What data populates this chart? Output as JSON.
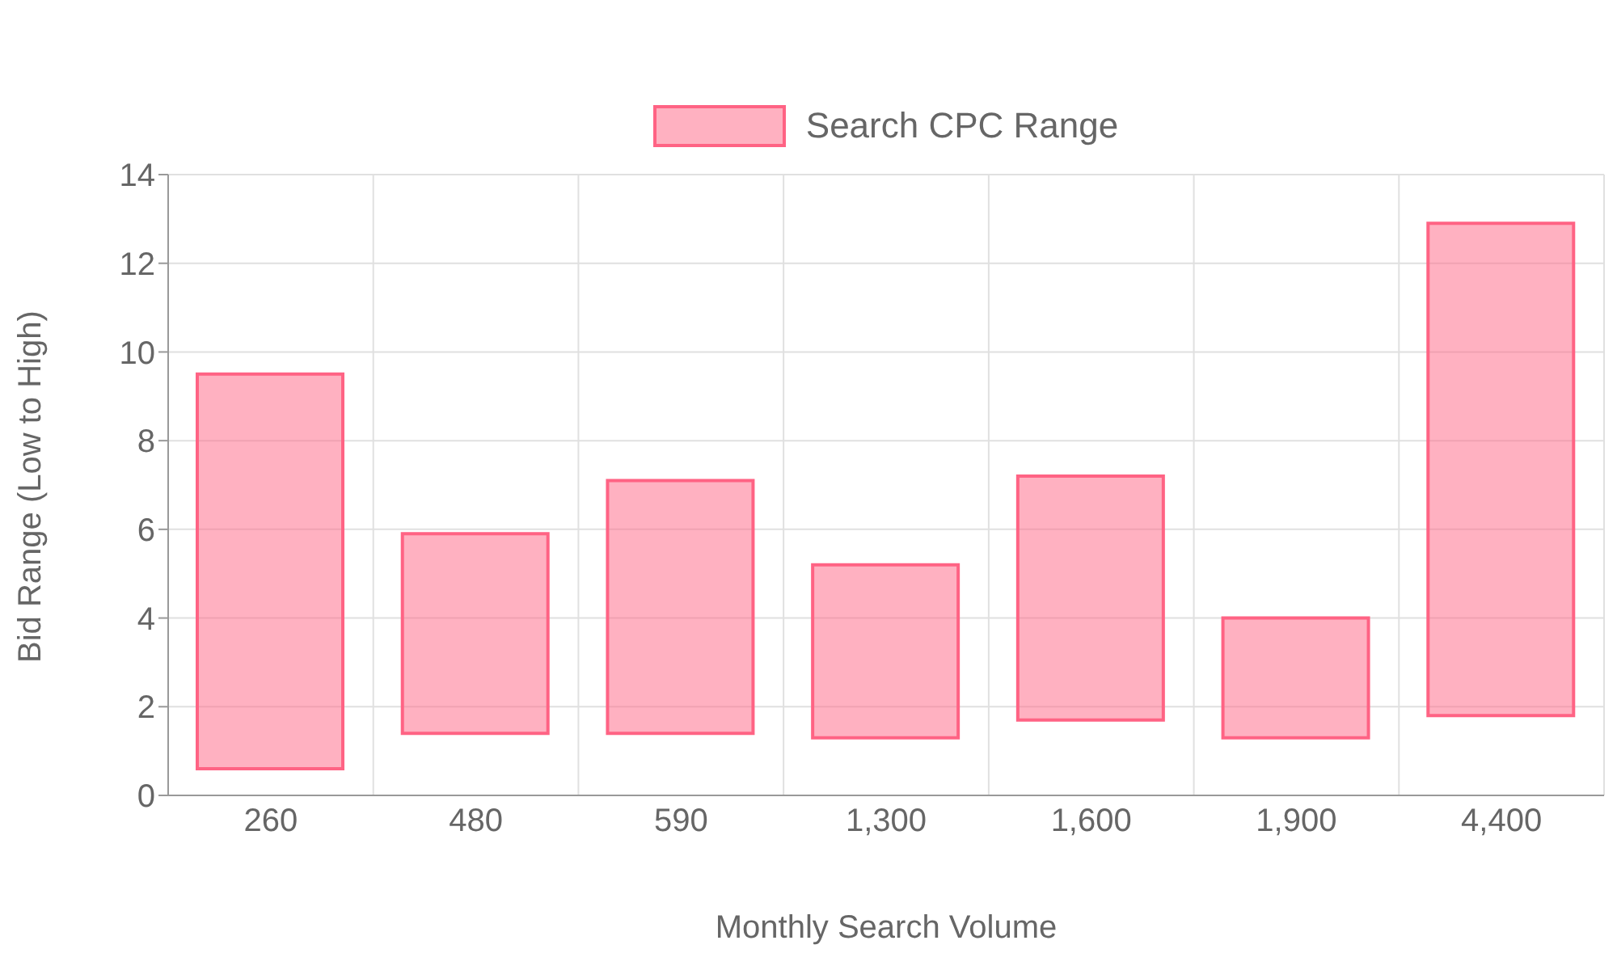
{
  "chart_data": {
    "type": "bar",
    "xlabel": "Monthly Search Volume",
    "ylabel": "Bid Range (Low to High)",
    "categories": [
      "260",
      "480",
      "590",
      "1,300",
      "1,600",
      "1,900",
      "4,400"
    ],
    "series": [
      {
        "name": "Search CPC Range",
        "color": "#ff6384",
        "values": [
          8.9,
          4.5,
          5.7,
          3.9,
          5.5,
          2.7,
          11.1
        ],
        "base": [
          0.6,
          1.4,
          1.4,
          1.3,
          1.7,
          1.3,
          1.8
        ]
      }
    ],
    "ylim": [
      0,
      14
    ],
    "yticks": [
      0,
      2,
      4,
      6,
      8,
      10,
      12,
      14
    ],
    "grid": true,
    "legend": "top"
  }
}
